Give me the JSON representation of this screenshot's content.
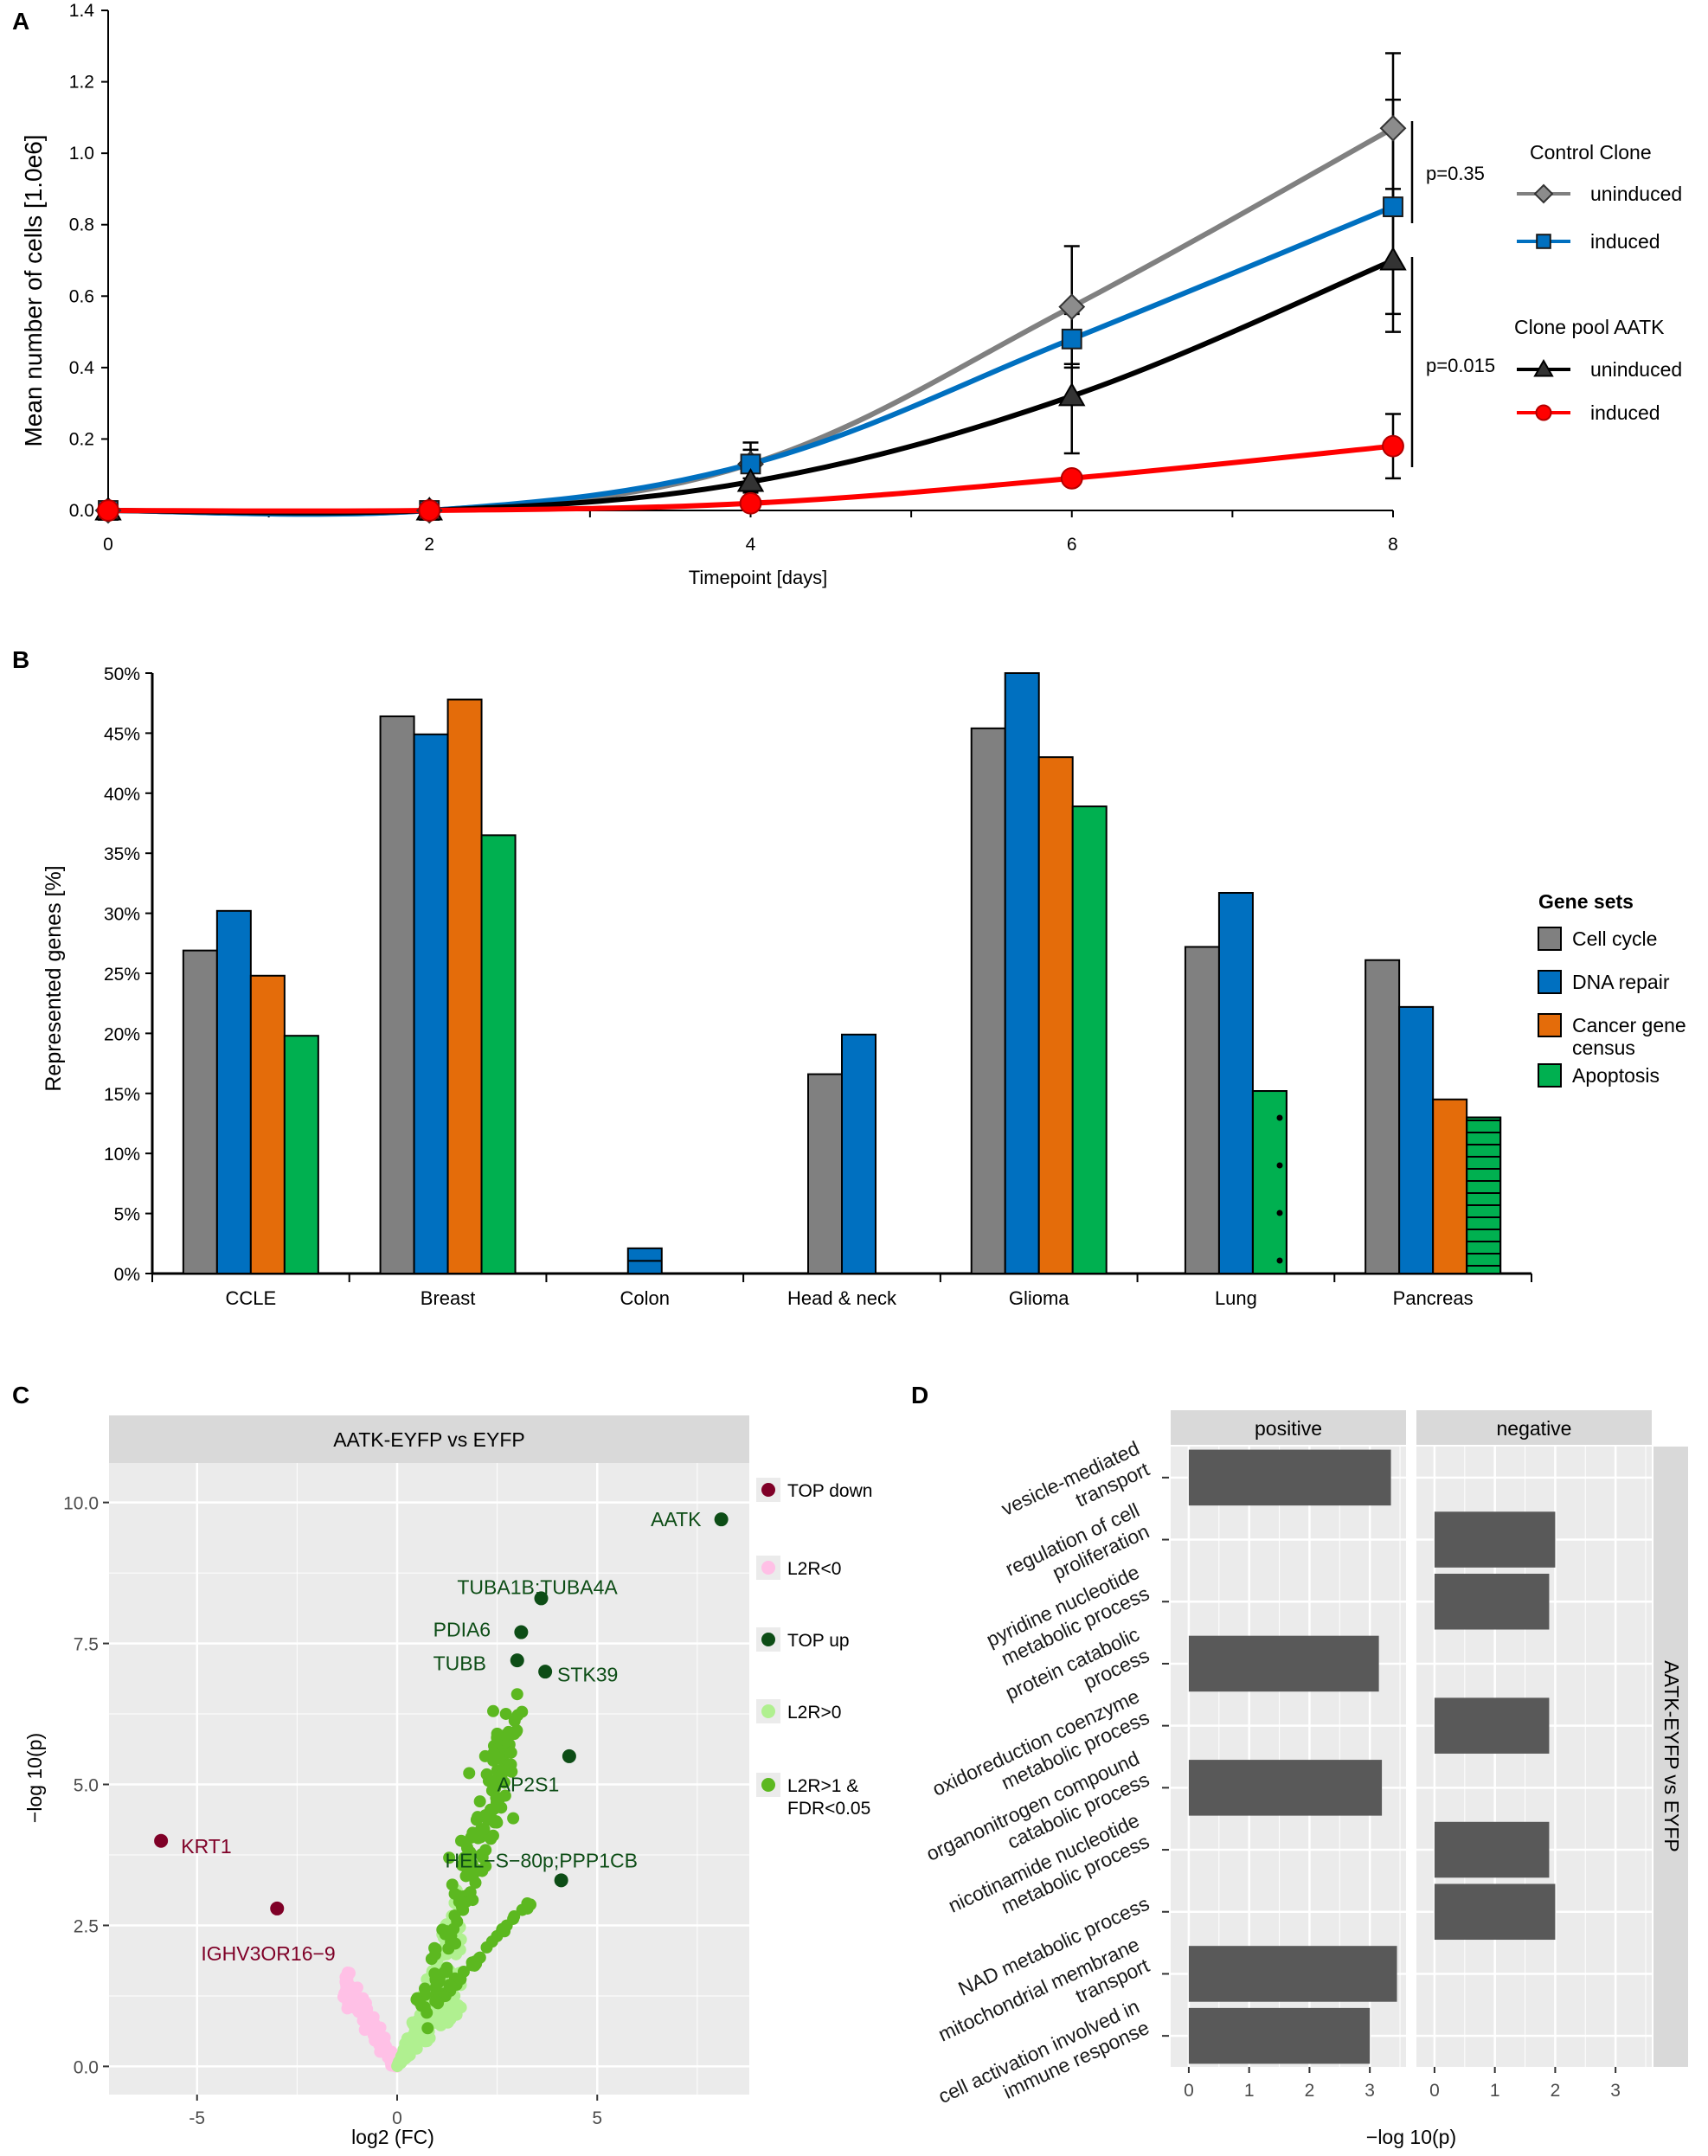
{
  "panels": {
    "a": "A",
    "b": "B",
    "c": "C",
    "d": "D"
  },
  "colors": {
    "gray": "#808080",
    "blue": "#0070c0",
    "black": "#000000",
    "red": "#ff0000",
    "orange": "#e46c0a",
    "green": "#00b050",
    "top_down": "#7f0027",
    "l2r_neg": "#ffc0e6",
    "top_up": "#0d4d16",
    "l2r_pos": "#b0f090",
    "l2r_sig": "#5cb820",
    "bar_d": "#595959",
    "panel_bg": "#ebebeb",
    "strip_bg": "#d9d9d9"
  },
  "chart_data": [
    {
      "type": "line",
      "title": "",
      "xlabel": "Timepoint [days]",
      "ylabel": "Mean number of cells [1.0e6]",
      "xlim": [
        0,
        8
      ],
      "ylim": [
        0,
        1.4
      ],
      "x": [
        0,
        2,
        4,
        6,
        8
      ],
      "x_ticks": [
        "0",
        "2",
        "4",
        "6",
        "8"
      ],
      "y_ticks": [
        "0.0",
        "0.2",
        "0.4",
        "0.6",
        "0.8",
        "1.0",
        "1.2",
        "1.4"
      ],
      "legend_groups": [
        "Control Clone",
        "Clone pool AATK"
      ],
      "series": [
        {
          "name": "uninduced",
          "group": 0,
          "marker": "diamond",
          "color": "#808080",
          "values": [
            0.0,
            0.0,
            0.13,
            0.57,
            1.07
          ],
          "errors": [
            0,
            0,
            0.04,
            0.17,
            0.21
          ]
        },
        {
          "name": "induced",
          "group": 0,
          "marker": "square",
          "color": "#0070c0",
          "values": [
            0.0,
            0.0,
            0.13,
            0.48,
            0.85
          ],
          "errors": [
            0,
            0,
            0.06,
            0.07,
            0.3
          ]
        },
        {
          "name": "uninduced",
          "group": 1,
          "marker": "triangle",
          "color": "#000000",
          "values": [
            0.0,
            0.0,
            0.08,
            0.32,
            0.7
          ],
          "errors": [
            0,
            0,
            0.03,
            0.16,
            0.2
          ]
        },
        {
          "name": "induced",
          "group": 1,
          "marker": "circle",
          "color": "#ff0000",
          "values": [
            0.0,
            0.0,
            0.02,
            0.09,
            0.18
          ],
          "errors": [
            0,
            0,
            0,
            0,
            0.09
          ]
        }
      ],
      "annotations": [
        "p=0.35",
        "p=0.015"
      ]
    },
    {
      "type": "bar",
      "title": "",
      "xlabel": "",
      "ylabel": "Represented genes [%]",
      "ylim": [
        0,
        50
      ],
      "y_ticks": [
        "0%",
        "5%",
        "10%",
        "15%",
        "20%",
        "25%",
        "30%",
        "35%",
        "40%",
        "45%",
        "50%"
      ],
      "categories": [
        "CCLE",
        "Breast",
        "Colon",
        "Head & neck",
        "Glioma",
        "Lung",
        "Pancreas"
      ],
      "legend_title": "Gene sets",
      "legend_labels": [
        "Cell cycle",
        "DNA repair",
        "Cancer gene",
        "census",
        "Apoptosis"
      ],
      "series": [
        {
          "name": "Cell cycle",
          "color": "#808080",
          "values": [
            26.9,
            46.4,
            0,
            16.6,
            45.4,
            27.2,
            26.1
          ]
        },
        {
          "name": "DNA repair",
          "color": "#0070c0",
          "values": [
            30.2,
            44.9,
            2.1,
            19.9,
            50.0,
            31.7,
            22.2
          ]
        },
        {
          "name": "Cancer gene census",
          "color": "#e46c0a",
          "values": [
            24.8,
            47.8,
            0,
            0,
            43.0,
            0,
            14.5
          ]
        },
        {
          "name": "Apoptosis",
          "color": "#00b050",
          "values": [
            19.8,
            36.5,
            0,
            0,
            38.9,
            15.2,
            13.0
          ]
        }
      ]
    },
    {
      "type": "scatter",
      "title": "AATK-EYFP vs EYFP",
      "xlabel": "log2 (FC)",
      "ylabel": "−log 10(p)",
      "xlim": [
        -7.2,
        8.8
      ],
      "ylim": [
        -0.5,
        10.7
      ],
      "x_ticks": [
        -5,
        0,
        5
      ],
      "x_tick_labels": [
        "-5",
        "0",
        "5"
      ],
      "y_ticks": [
        0,
        2.5,
        5,
        7.5,
        10
      ],
      "y_tick_labels": [
        "0.0",
        "2.5",
        "5.0",
        "7.5",
        "10.0"
      ],
      "legend": [
        "TOP down",
        "L2R<0",
        "TOP up",
        "L2R>0",
        "L2R>1  &",
        "FDR<0.05"
      ],
      "top_points": [
        {
          "label": "AATK",
          "x": 8.1,
          "y": 9.7,
          "group": "TOP up"
        },
        {
          "label": "TUBA1B;TUBA4A",
          "x": 3.6,
          "y": 8.3,
          "group": "TOP up"
        },
        {
          "label": "PDIA6",
          "x": 3.1,
          "y": 7.7,
          "group": "TOP up"
        },
        {
          "label": "TUBB",
          "x": 3.0,
          "y": 7.2,
          "group": "TOP up"
        },
        {
          "label": "STK39",
          "x": 3.7,
          "y": 7.0,
          "group": "TOP up"
        },
        {
          "label": "AP2S1",
          "x": 4.3,
          "y": 5.5,
          "group": "TOP up"
        },
        {
          "label": "HEL−S−80p;PPP1CB",
          "x": 4.1,
          "y": 3.3,
          "group": "TOP up"
        },
        {
          "label": "KRT1",
          "x": -5.9,
          "y": 4.0,
          "group": "TOP down"
        },
        {
          "label": "IGHV3OR16−9",
          "x": -3.0,
          "y": 2.8,
          "group": "TOP down"
        }
      ]
    },
    {
      "type": "bar",
      "title": "",
      "xlabel": "−log 10(p)",
      "ylabel": "",
      "facets": [
        "positive",
        "negative"
      ],
      "strip_label": "AATK-EYFP vs EYFP",
      "xlim": [
        -0.3,
        3.6
      ],
      "x_ticks": [
        0,
        1,
        2,
        3
      ],
      "categories": [
        [
          "vesicle-mediated",
          "transport"
        ],
        [
          "regulation of cell",
          "proliferation"
        ],
        [
          "pyridine nucleotide",
          "metabolic process"
        ],
        [
          "protein catabolic",
          "process"
        ],
        [
          "oxidoreduction coenzyme",
          "metabolic process"
        ],
        [
          "organonitrogen compound",
          "catabolic process"
        ],
        [
          "nicotinamide nucleotide",
          "metabolic process"
        ],
        [
          "NAD metabolic process"
        ],
        [
          "mitochondrial membrane",
          "transport"
        ],
        [
          "cell activation involved in",
          "immune response"
        ]
      ],
      "positive": [
        3.35,
        0,
        0,
        3.15,
        0,
        3.2,
        0,
        0,
        3.45,
        3.0
      ],
      "negative": [
        0,
        2.0,
        1.9,
        0,
        1.9,
        0,
        1.9,
        2.0,
        0,
        0
      ]
    }
  ]
}
